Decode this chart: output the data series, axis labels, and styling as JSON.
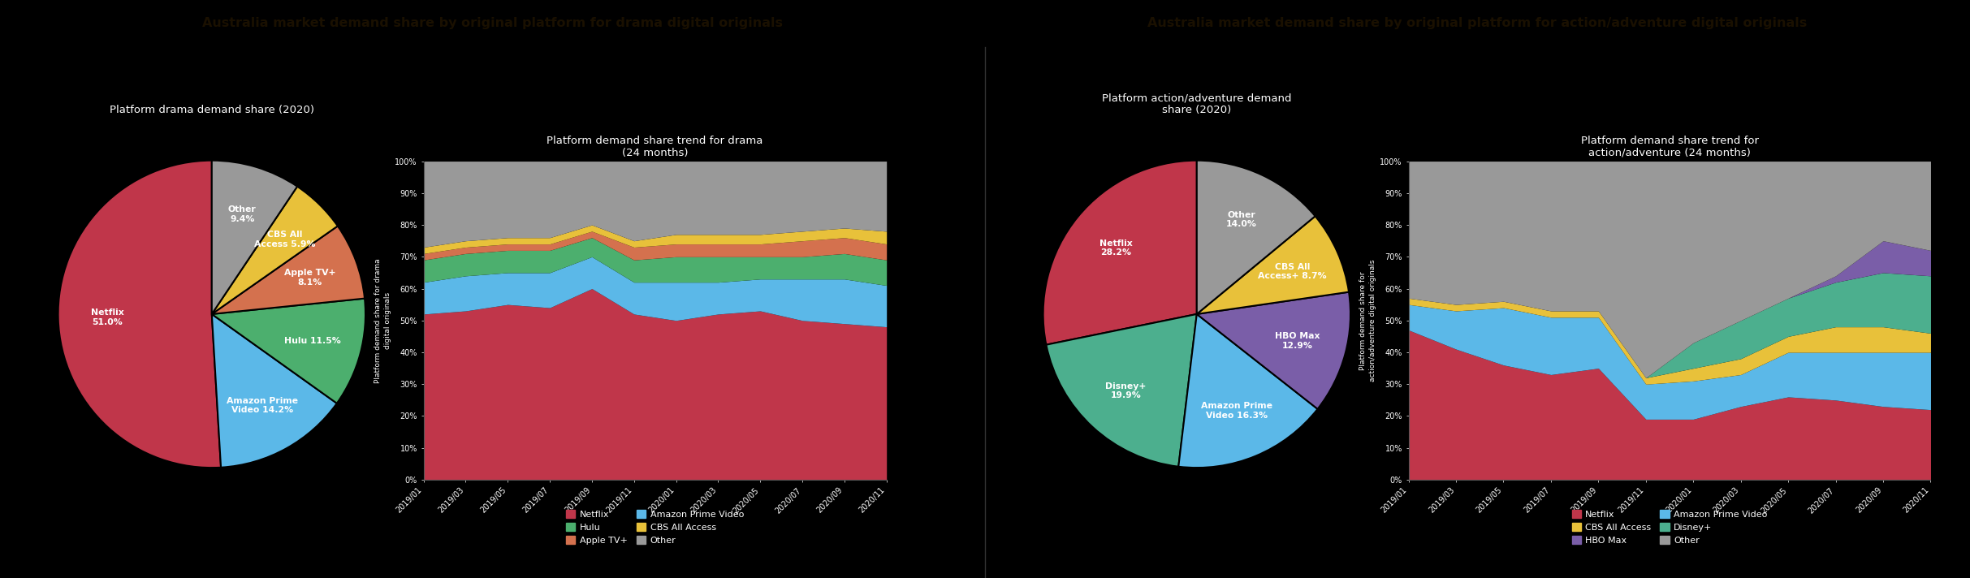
{
  "bg_color": "#000000",
  "header_color": "#c9a227",
  "header_text_color": "#1a1000",
  "drama_title": "Australia market demand share by original platform for drama digital originals",
  "action_title": "Australia market demand share by original platform for action/adventure digital originals",
  "drama_pie_title": "Platform drama demand share (2020)",
  "drama_area_title": "Platform demand share trend for drama\n(24 months)",
  "action_pie_title": "Platform action/adventure demand\nshare (2020)",
  "action_area_title": "Platform demand share trend for\naction/adventure (24 months)",
  "drama_pie_values": [
    51.0,
    14.2,
    11.5,
    8.1,
    5.9,
    9.4
  ],
  "drama_pie_colors": [
    "#c0364a",
    "#5bb8e8",
    "#4caf6e",
    "#d4714e",
    "#e8c13a",
    "#999999"
  ],
  "drama_pie_label_names": [
    "Netflix\n51.0%",
    "Amazon Prime\nVideo 14.2%",
    "Hulu 11.5%",
    "Apple TV+\n8.1%",
    "CBS All\nAccess 5.9%",
    "Other\n9.4%"
  ],
  "action_pie_values": [
    28.2,
    19.9,
    16.3,
    12.9,
    8.7,
    14.0
  ],
  "action_pie_colors": [
    "#c0364a",
    "#4caf8e",
    "#5bb8e8",
    "#7a5ea8",
    "#e8c13a",
    "#999999"
  ],
  "action_pie_label_names": [
    "Netflix\n28.2%",
    "Disney+\n19.9%",
    "Amazon Prime\nVideo 16.3%",
    "HBO Max\n12.9%",
    "CBS All\nAccess+ 8.7%",
    "Other\n14.0%"
  ],
  "x_labels": [
    "2019/01",
    "2019/03",
    "2019/05",
    "2019/07",
    "2019/09",
    "2019/11",
    "2020/01",
    "2020/03",
    "2020/05",
    "2020/07",
    "2020/09",
    "2020/11"
  ],
  "drama_netflix": [
    52,
    53,
    55,
    54,
    60,
    52,
    50,
    52,
    53,
    50,
    49,
    48
  ],
  "drama_amazon": [
    10,
    11,
    10,
    11,
    10,
    10,
    12,
    10,
    10,
    13,
    14,
    13
  ],
  "drama_hulu": [
    7,
    7,
    7,
    7,
    6,
    7,
    8,
    8,
    7,
    7,
    8,
    8
  ],
  "drama_appletv": [
    2,
    2,
    2,
    2,
    2,
    4,
    4,
    4,
    4,
    5,
    5,
    5
  ],
  "drama_cbs": [
    2,
    2,
    2,
    2,
    2,
    2,
    3,
    3,
    3,
    3,
    3,
    4
  ],
  "drama_other": [
    27,
    25,
    24,
    24,
    20,
    25,
    23,
    23,
    23,
    22,
    21,
    22
  ],
  "action_netflix": [
    47,
    41,
    36,
    33,
    35,
    19,
    19,
    23,
    26,
    25,
    23,
    22
  ],
  "action_amazon": [
    8,
    12,
    18,
    18,
    16,
    11,
    12,
    10,
    14,
    15,
    17,
    18
  ],
  "action_cbs": [
    2,
    2,
    2,
    2,
    2,
    2,
    4,
    5,
    5,
    8,
    8,
    6
  ],
  "action_disney": [
    0,
    0,
    0,
    0,
    0,
    0,
    8,
    12,
    12,
    14,
    17,
    18
  ],
  "action_hbomax": [
    0,
    0,
    0,
    0,
    0,
    0,
    0,
    0,
    0,
    2,
    10,
    8
  ],
  "action_other": [
    43,
    45,
    44,
    47,
    47,
    68,
    57,
    50,
    43,
    36,
    25,
    28
  ],
  "drama_legend": [
    {
      "label": "Netflix",
      "color": "#c0364a"
    },
    {
      "label": "Hulu",
      "color": "#4caf6e"
    },
    {
      "label": "Apple TV+",
      "color": "#d4714e"
    },
    {
      "label": "Amazon Prime Video",
      "color": "#5bb8e8"
    },
    {
      "label": "CBS All Access",
      "color": "#e8c13a"
    },
    {
      "label": "Other",
      "color": "#999999"
    }
  ],
  "action_legend": [
    {
      "label": "Netflix",
      "color": "#c0364a"
    },
    {
      "label": "CBS All Access",
      "color": "#e8c13a"
    },
    {
      "label": "HBO Max",
      "color": "#7a5ea8"
    },
    {
      "label": "Amazon Prime Video",
      "color": "#5bb8e8"
    },
    {
      "label": "Disney+",
      "color": "#4caf8e"
    },
    {
      "label": "Other",
      "color": "#999999"
    }
  ],
  "text_color": "#ffffff",
  "grid_color": "#555555"
}
